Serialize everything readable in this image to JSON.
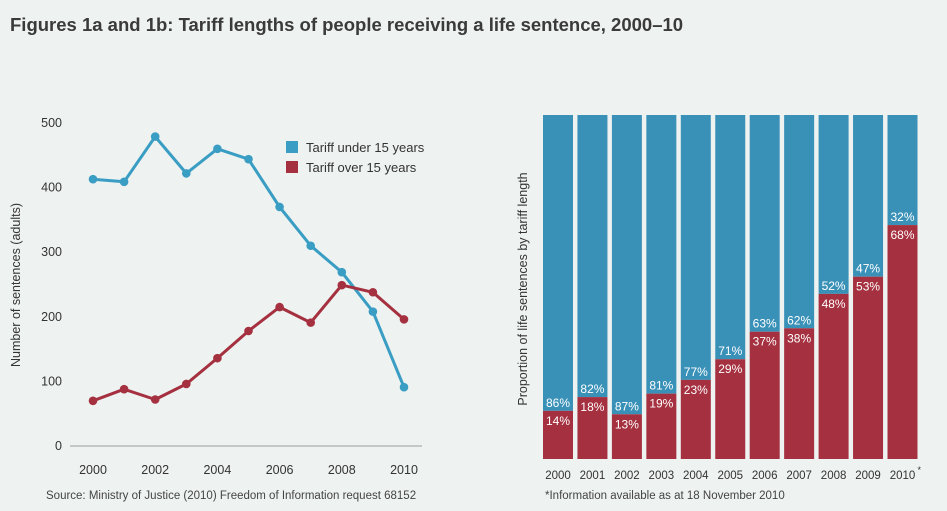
{
  "title": "Figures 1a and 1b: Tariff lengths of people receiving a life sentence, 2000–10",
  "colors": {
    "under": "#3a9dc3",
    "over": "#a5303f",
    "under_bar": "#3a91b8"
  },
  "chart_data": [
    {
      "type": "line",
      "x": [
        2000,
        2001,
        2002,
        2003,
        2004,
        2005,
        2006,
        2007,
        2008,
        2009,
        2010
      ],
      "x_tick_labels": [
        "2000",
        "2002",
        "2004",
        "2006",
        "2008",
        "2010"
      ],
      "y_tick_labels": [
        "0",
        "100",
        "200",
        "300",
        "400",
        "500"
      ],
      "ylim": [
        0,
        500
      ],
      "ylabel": "Number of sentences (adults)",
      "series": [
        {
          "name": "Tariff under 15 years",
          "values": [
            413,
            409,
            479,
            422,
            460,
            444,
            370,
            310,
            269,
            208,
            91
          ]
        },
        {
          "name": "Tariff over 15 years",
          "values": [
            70,
            88,
            72,
            96,
            136,
            178,
            215,
            191,
            249,
            238,
            196
          ]
        }
      ],
      "legend": "top-right",
      "source": "Source: Ministry of Justice (2010) Freedom of Information request 68152"
    },
    {
      "type": "bar",
      "stacked": true,
      "categories": [
        "2000",
        "2001",
        "2002",
        "2003",
        "2004",
        "2005",
        "2006",
        "2007",
        "2008",
        "2009",
        "2010"
      ],
      "ylabel": "Proportion of life sentences by tariff length",
      "ylim": [
        0,
        100
      ],
      "series": [
        {
          "name": "Tariff over 15 years",
          "values": [
            14,
            18,
            13,
            19,
            23,
            29,
            37,
            38,
            48,
            53,
            68
          ],
          "labels": [
            "14%",
            "18%",
            "13%",
            "19%",
            "23%",
            "29%",
            "37%",
            "38%",
            "48%",
            "53%",
            "68%"
          ]
        },
        {
          "name": "Tariff under 15 years",
          "values": [
            86,
            82,
            87,
            81,
            77,
            71,
            63,
            62,
            52,
            47,
            32
          ],
          "labels": [
            "86%",
            "82%",
            "87%",
            "81%",
            "77%",
            "71%",
            "63%",
            "62%",
            "52%",
            "47%",
            "32%"
          ]
        }
      ],
      "last_category_marker": "*",
      "footnote": "*Information available as at 18 November 2010"
    }
  ]
}
